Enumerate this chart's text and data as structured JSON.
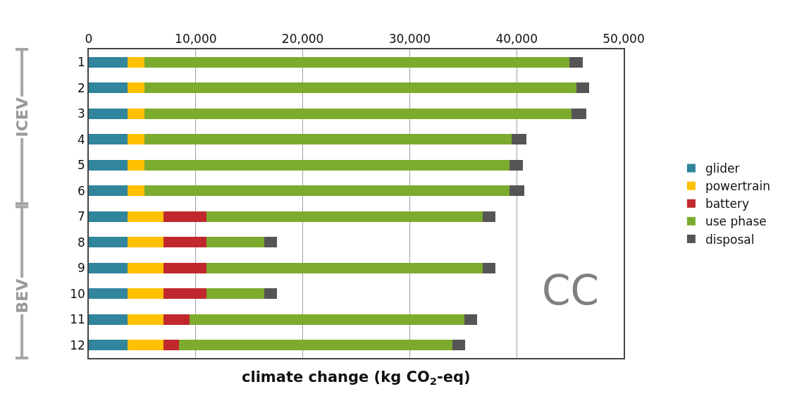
{
  "chart_data": {
    "type": "bar",
    "orientation": "horizontal",
    "stacked": true,
    "xlabel": "climate change (kg CO$_{2}$-eq)",
    "categories": [
      "1",
      "2",
      "3",
      "4",
      "5",
      "6",
      "7",
      "8",
      "9",
      "10",
      "11",
      "12"
    ],
    "series": [
      {
        "name": "glider",
        "color": "#31859c",
        "values": [
          3600,
          3600,
          3600,
          3600,
          3600,
          3600,
          3600,
          3600,
          3600,
          3600,
          3600,
          3600
        ]
      },
      {
        "name": "powertrain",
        "color": "#ffc000",
        "values": [
          1600,
          1600,
          1600,
          1600,
          1600,
          1600,
          3400,
          3400,
          3400,
          3400,
          3400,
          3400
        ]
      },
      {
        "name": "battery",
        "color": "#c0282d",
        "values": [
          0,
          0,
          0,
          0,
          0,
          0,
          4000,
          4000,
          4000,
          4000,
          2400,
          1400
        ]
      },
      {
        "name": "use phase",
        "color": "#7cab2e",
        "values": [
          39700,
          40400,
          39900,
          34300,
          34100,
          34100,
          25800,
          5400,
          25800,
          5400,
          25700,
          25600
        ]
      },
      {
        "name": "disposal",
        "color": "#555555",
        "values": [
          1300,
          1200,
          1400,
          1400,
          1300,
          1400,
          1200,
          1200,
          1200,
          1200,
          1200,
          1200
        ]
      }
    ],
    "xlim": [
      0,
      50000
    ],
    "xticks": [
      {
        "value": 0,
        "label": "0"
      },
      {
        "value": 10000,
        "label": "10,000"
      },
      {
        "value": 20000,
        "label": "20,000"
      },
      {
        "value": 30000,
        "label": "30,000"
      },
      {
        "value": 40000,
        "label": "40,000"
      },
      {
        "value": 50000,
        "label": "50,000"
      }
    ],
    "grid": "x",
    "legend": "right",
    "annotations": [
      "ICEV",
      "BEV",
      "CC"
    ]
  }
}
